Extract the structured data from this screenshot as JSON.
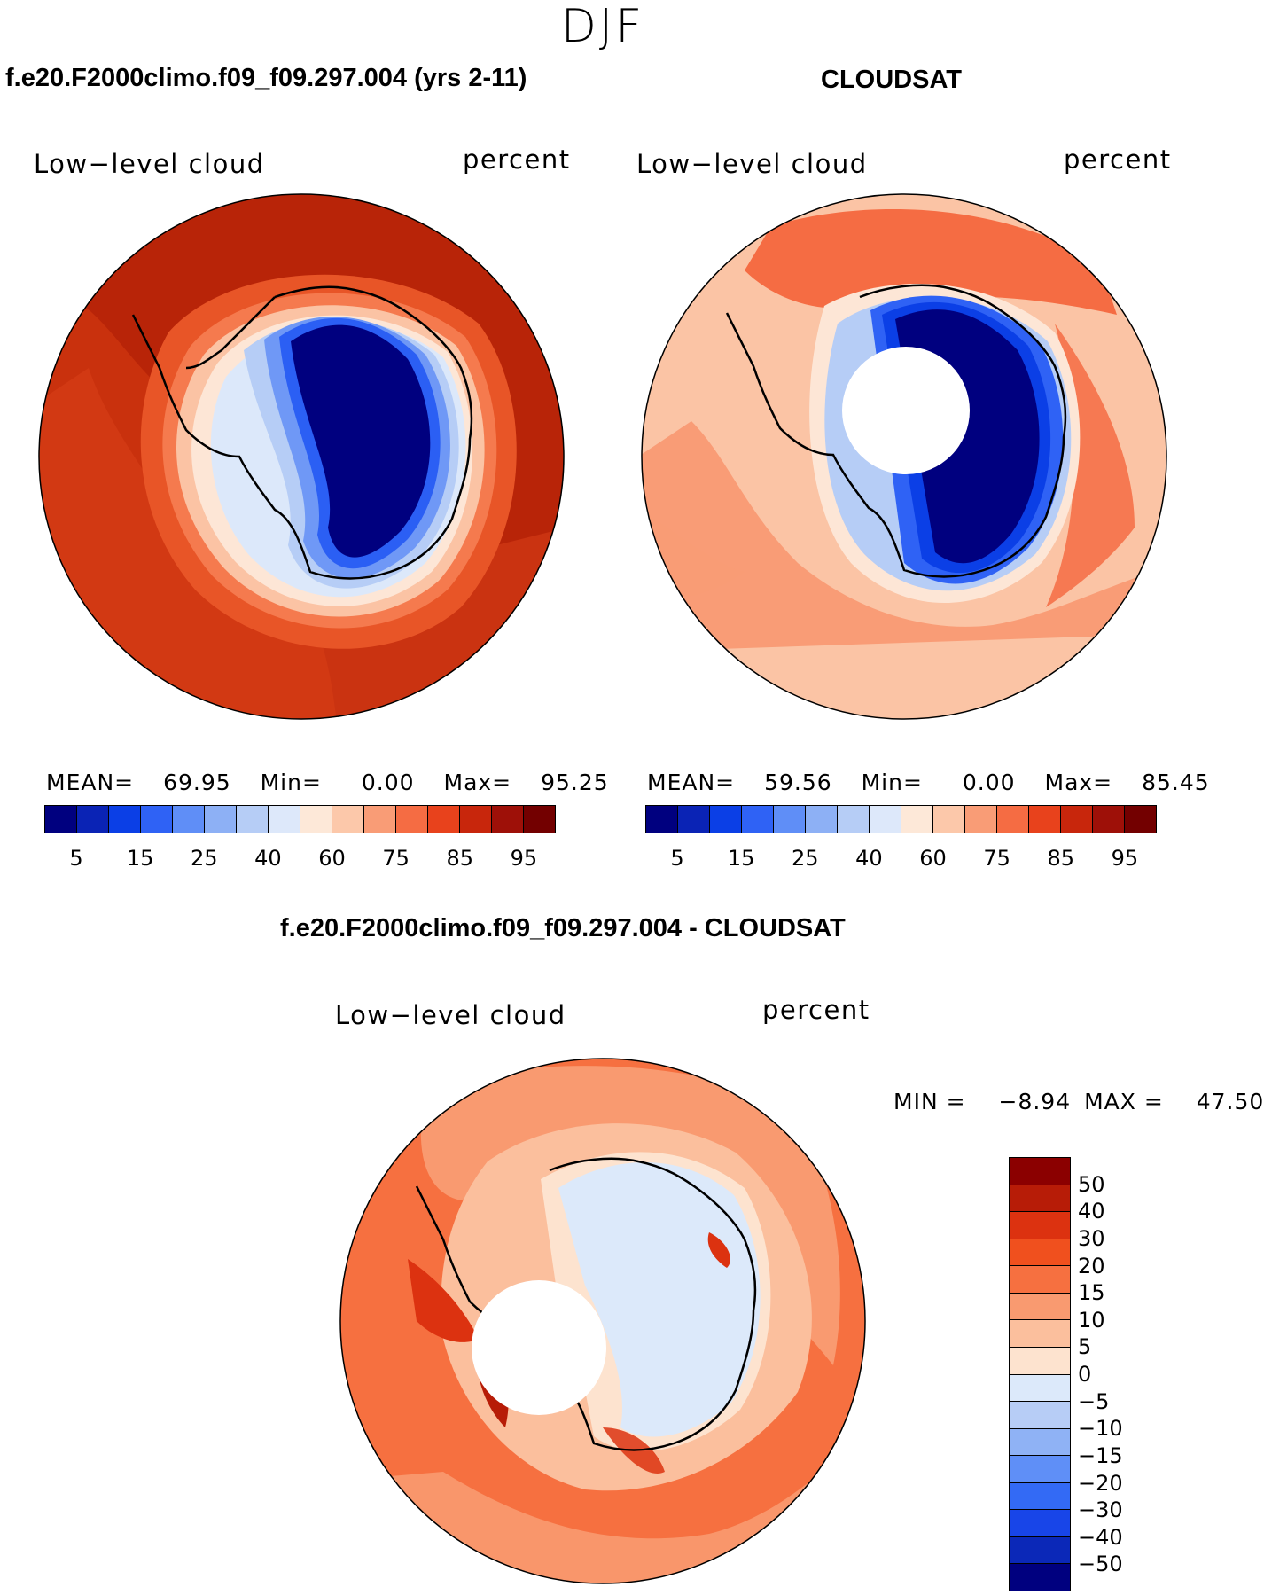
{
  "title": "DJF",
  "panels": [
    {
      "title": "f.e20.F2000climo.f09_f09.297.004 (yrs 2-11)",
      "variable": "Low−level cloud",
      "units": "percent",
      "stats": {
        "mean_label": "MEAN=",
        "mean": "69.95",
        "min_label": "Min=",
        "min": "0.00",
        "max_label": "Max=",
        "max": "95.25"
      }
    },
    {
      "title": "CLOUDSAT",
      "variable": "Low−level cloud",
      "units": "percent",
      "stats": {
        "mean_label": "MEAN=",
        "mean": "59.56",
        "min_label": "Min=",
        "min": "0.00",
        "max_label": "Max=",
        "max": "85.45"
      }
    }
  ],
  "colorbar": {
    "colors": [
      "#00007f",
      "#0a23b5",
      "#0b3fe6",
      "#2f62f5",
      "#5f8ef7",
      "#8db0f5",
      "#b6cdf6",
      "#dde8fa",
      "#fde8d8",
      "#fcc8aa",
      "#f99c76",
      "#f56c43",
      "#e8421c",
      "#c8260c",
      "#9e1008",
      "#730000"
    ],
    "ticks": [
      "5",
      "15",
      "25",
      "40",
      "60",
      "75",
      "85",
      "95"
    ]
  },
  "difference": {
    "title": "f.e20.F2000climo.f09_f09.297.004 - CLOUDSAT",
    "variable": "Low−level cloud",
    "units": "percent",
    "min_label": "MIN =",
    "min": "−8.94",
    "max_label": "MAX =",
    "max": "47.50",
    "colorbar": {
      "colors": [
        "#8b0000",
        "#b71c07",
        "#dc3210",
        "#f0501e",
        "#f67040",
        "#f99a70",
        "#fbbf9d",
        "#fde3cf",
        "#dce9fa",
        "#b7cdf6",
        "#8fb2f5",
        "#5f8ff7",
        "#336af5",
        "#1845e8",
        "#0b28b8",
        "#00007f"
      ],
      "ticks": [
        "50",
        "40",
        "30",
        "20",
        "15",
        "10",
        "5",
        "0",
        "−5",
        "−10",
        "−15",
        "−20",
        "−30",
        "−40",
        "−50"
      ]
    }
  }
}
